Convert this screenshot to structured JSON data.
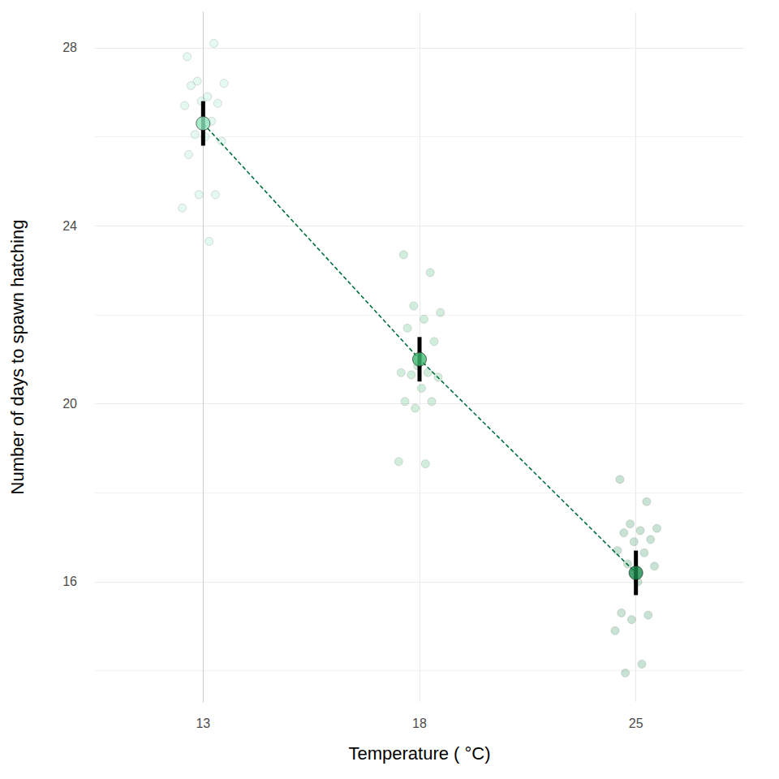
{
  "chart_data": {
    "type": "scatter",
    "x_label": "Temperature ( °C)",
    "y_label": "Number of days to spawn hatching",
    "categories": [
      "13",
      "18",
      "25"
    ],
    "points": [
      [
        27.8,
        28.1,
        27.25,
        27.2,
        26.9,
        27.15,
        26.75,
        26.8,
        26.7,
        26.35,
        26.05,
        25.9,
        26.0,
        25.6,
        24.7,
        24.7,
        24.4,
        23.65
      ],
      [
        23.35,
        22.95,
        22.2,
        22.05,
        21.9,
        21.7,
        21.4,
        20.85,
        20.7,
        20.7,
        20.65,
        20.6,
        20.35,
        20.05,
        20.05,
        19.9,
        18.7,
        18.65
      ],
      [
        18.3,
        17.8,
        17.3,
        17.2,
        17.15,
        17.1,
        16.95,
        16.9,
        16.7,
        16.65,
        16.4,
        16.35,
        16.0,
        15.3,
        15.25,
        15.15,
        14.9,
        14.15,
        13.95
      ]
    ],
    "means": [
      26.3,
      21.0,
      16.2
    ],
    "error_low": [
      25.8,
      20.5,
      15.7
    ],
    "error_high": [
      26.8,
      21.5,
      16.7
    ],
    "colors": [
      "#8ee6bd",
      "#3dba6f",
      "#17884a"
    ],
    "line_color": "#00703c",
    "line_style": "dashed",
    "ylim": [
      13.3,
      28.8
    ],
    "yticks": [
      16,
      20,
      24,
      28
    ],
    "grid": true
  }
}
